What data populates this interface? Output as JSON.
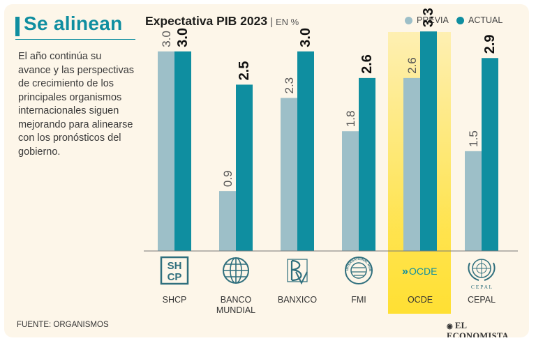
{
  "headline": "Se alinean",
  "body_text": "El año continúa su avance y las perspectivas de crecimiento de los principales organismos internacionales siguen mejorando para alinearse con los pronósticos del gobierno.",
  "chart_data": {
    "type": "bar",
    "title": "Expectativa PIB 2023",
    "separator": "|",
    "unit": "EN %",
    "categories": [
      "SHCP",
      "BANCO MUNDIAL",
      "BANXICO",
      "FMI",
      "OCDE",
      "CEPAL"
    ],
    "series": [
      {
        "name": "PREVIA",
        "color": "#9dbfc8",
        "values": [
          3.0,
          0.9,
          2.3,
          1.8,
          2.6,
          1.5
        ]
      },
      {
        "name": "ACTUAL",
        "color": "#0f8ea0",
        "values": [
          3.0,
          2.5,
          3.0,
          2.6,
          3.3,
          2.9
        ]
      }
    ],
    "value_labels": {
      "PREVIA": [
        "3.0",
        "0.9",
        "2.3",
        "1.8",
        "2.6",
        "1.5"
      ],
      "ACTUAL": [
        "3.0",
        "2.5",
        "3.0",
        "2.6",
        "3.3",
        "2.9"
      ]
    },
    "highlight_category": "OCDE",
    "highlight_color": "#ffe033",
    "ylim": [
      0,
      3.5
    ],
    "legend_position": "top-right",
    "icons": [
      "shcp-logo-icon",
      "world-bank-globe-icon",
      "banxico-logo-icon",
      "imf-seal-icon",
      "oecd-logo-icon",
      "cepal-un-emblem-icon"
    ]
  },
  "logo_text": {
    "shcp": "SHCP",
    "ocde": "OCDE",
    "cepal": "CEPAL",
    "imf_seal": "INTERNATIONAL MONETARY FUND"
  },
  "source": "FUENTE: ORGANISMOS",
  "brand": "EL ECONOMISTA",
  "colors": {
    "accent": "#0f8ea0",
    "previa": "#9dbfc8",
    "background": "#fdf6e9",
    "highlight": "#ffe033"
  }
}
